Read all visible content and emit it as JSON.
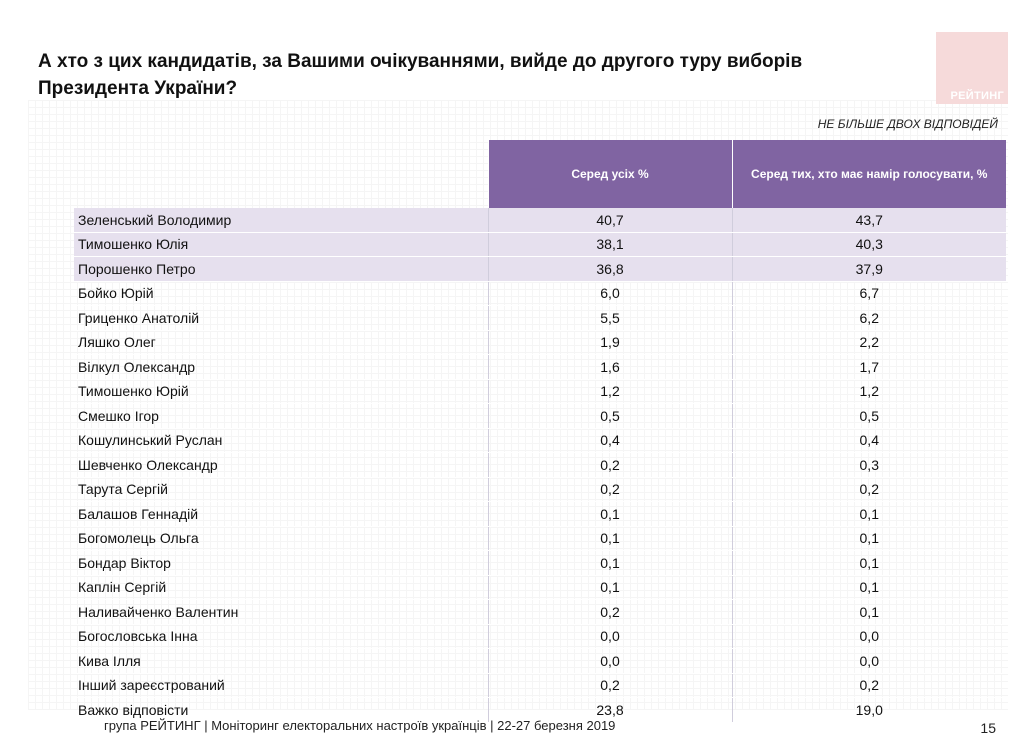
{
  "title": "А хто з цих кандидатів, за Вашими очікуваннями, вийде до другого туру виборів Президента України?",
  "logo_text": "РЕЙТИНГ",
  "note": "НЕ БІЛЬШЕ ДВОХ ВІДПОВІДЕЙ",
  "table": {
    "headers": [
      "Серед усіх %",
      "Серед тих, хто має намір голосувати, %"
    ],
    "rows": [
      {
        "name": "Зеленський Володимир",
        "all": "40,7",
        "voters": "43,7"
      },
      {
        "name": "Тимошенко Юлія",
        "all": "38,1",
        "voters": "40,3"
      },
      {
        "name": "Порошенко Петро",
        "all": "36,8",
        "voters": "37,9"
      },
      {
        "name": "Бойко Юрій",
        "all": "6,0",
        "voters": "6,7"
      },
      {
        "name": "Гриценко Анатолій",
        "all": "5,5",
        "voters": "6,2"
      },
      {
        "name": "Ляшко Олег",
        "all": "1,9",
        "voters": "2,2"
      },
      {
        "name": "Вілкул Олександр",
        "all": "1,6",
        "voters": "1,7"
      },
      {
        "name": "Тимошенко Юрій",
        "all": "1,2",
        "voters": "1,2"
      },
      {
        "name": "Смешко Ігор",
        "all": "0,5",
        "voters": "0,5"
      },
      {
        "name": "Кошулинський Руслан",
        "all": "0,4",
        "voters": "0,4"
      },
      {
        "name": "Шевченко Олександр",
        "all": "0,2",
        "voters": "0,3"
      },
      {
        "name": "Тарута Сергій",
        "all": "0,2",
        "voters": "0,2"
      },
      {
        "name": "Балашов Геннадій",
        "all": "0,1",
        "voters": "0,1"
      },
      {
        "name": "Богомолець Ольга",
        "all": "0,1",
        "voters": "0,1"
      },
      {
        "name": "Бондар Віктор",
        "all": "0,1",
        "voters": "0,1"
      },
      {
        "name": "Каплін Сергій",
        "all": "0,1",
        "voters": "0,1"
      },
      {
        "name": "Наливайченко Валентин",
        "all": "0,2",
        "voters": "0,1"
      },
      {
        "name": "Богословська Інна",
        "all": "0,0",
        "voters": "0,0"
      },
      {
        "name": "Кива Ілля",
        "all": "0,0",
        "voters": "0,0"
      },
      {
        "name": "Інший зареєстрований",
        "all": "0,2",
        "voters": "0,2"
      },
      {
        "name": "Важко відповісти",
        "all": "23,8",
        "voters": "19,0"
      }
    ]
  },
  "footer": "група РЕЙТИНГ | Моніторинг електоральних настроїв українців  |  22-27 березня 2019",
  "page_number": "15",
  "colors": {
    "header_purple": "#8064a2",
    "highlight_lavender": "#e6e0ee",
    "logo_pink": "#f6dada"
  }
}
